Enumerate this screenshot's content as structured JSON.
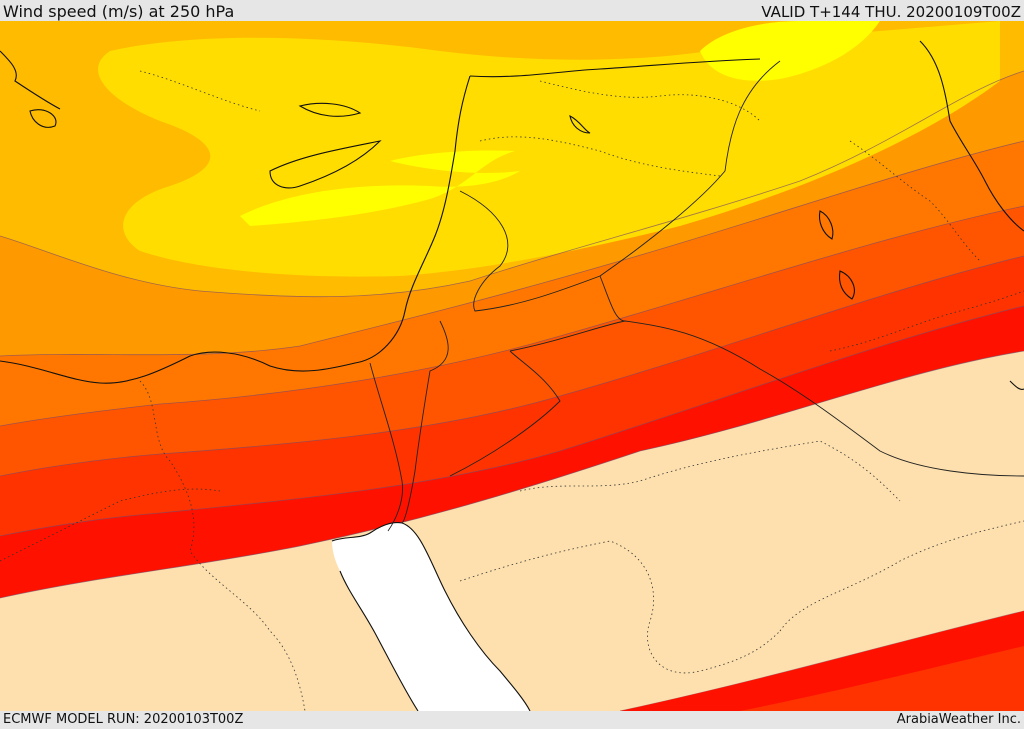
{
  "header": {
    "title": "Wind speed (m/s) at 250 hPa",
    "valid": "VALID T+144 THU. 20200109T00Z"
  },
  "footer": {
    "model_run": "ECMWF MODEL RUN: 20200103T00Z",
    "credit": "ArabiaWeather Inc."
  },
  "map": {
    "colors": {
      "band_1": "#ffff00",
      "band_2": "#ffdd00",
      "band_3": "#ffbb00",
      "band_4": "#ff9900",
      "band_5": "#ff7700",
      "band_6": "#ff5500",
      "band_7": "#ff3300",
      "band_8": "#ff1100",
      "calm": "#fde0ad",
      "sea": "#ffffff"
    }
  }
}
